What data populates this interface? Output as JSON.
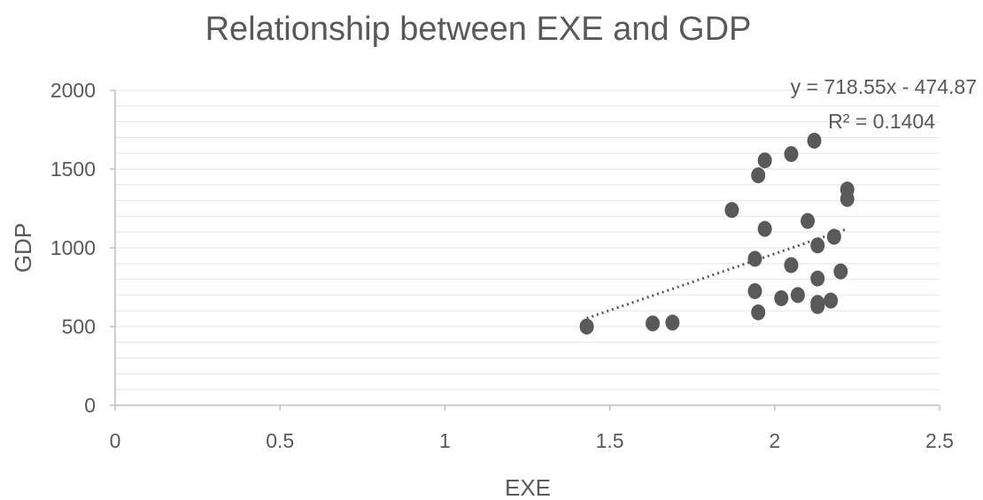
{
  "chart_data": {
    "type": "scatter",
    "title": "Relationship between EXE and GDP",
    "xlabel": "EXE",
    "ylabel": "GDP",
    "xlim": [
      0,
      2.5
    ],
    "ylim": [
      0,
      2000
    ],
    "x_ticks": [
      0,
      0.5,
      1,
      1.5,
      2,
      2.5
    ],
    "y_ticks": [
      0,
      500,
      1000,
      1500,
      2000
    ],
    "x_tick_labels": [
      "0",
      "0.5",
      "1",
      "1.5",
      "2",
      "2.5"
    ],
    "y_tick_labels": [
      "0",
      "500",
      "1000",
      "1500",
      "2000"
    ],
    "grid": true,
    "color": "#595959",
    "points": [
      {
        "x": 1.43,
        "y": 500
      },
      {
        "x": 1.63,
        "y": 520
      },
      {
        "x": 1.69,
        "y": 525
      },
      {
        "x": 1.87,
        "y": 1240
      },
      {
        "x": 1.94,
        "y": 930
      },
      {
        "x": 1.94,
        "y": 725
      },
      {
        "x": 1.95,
        "y": 590
      },
      {
        "x": 1.95,
        "y": 1460
      },
      {
        "x": 1.97,
        "y": 1555
      },
      {
        "x": 1.97,
        "y": 1120
      },
      {
        "x": 2.02,
        "y": 680
      },
      {
        "x": 2.05,
        "y": 1595
      },
      {
        "x": 2.05,
        "y": 890
      },
      {
        "x": 2.07,
        "y": 700
      },
      {
        "x": 2.1,
        "y": 1170
      },
      {
        "x": 2.12,
        "y": 1680
      },
      {
        "x": 2.13,
        "y": 1015
      },
      {
        "x": 2.13,
        "y": 805
      },
      {
        "x": 2.13,
        "y": 650
      },
      {
        "x": 2.13,
        "y": 630
      },
      {
        "x": 2.17,
        "y": 665
      },
      {
        "x": 2.18,
        "y": 1070
      },
      {
        "x": 2.2,
        "y": 850
      },
      {
        "x": 2.22,
        "y": 1370
      },
      {
        "x": 2.22,
        "y": 1310
      }
    ],
    "trendline": {
      "type": "linear",
      "slope": 718.55,
      "intercept": -474.87,
      "x_range": [
        1.43,
        2.22
      ],
      "equation": "y = 718.55x - 474.87",
      "r2_label": "R² = 0.1404"
    }
  }
}
